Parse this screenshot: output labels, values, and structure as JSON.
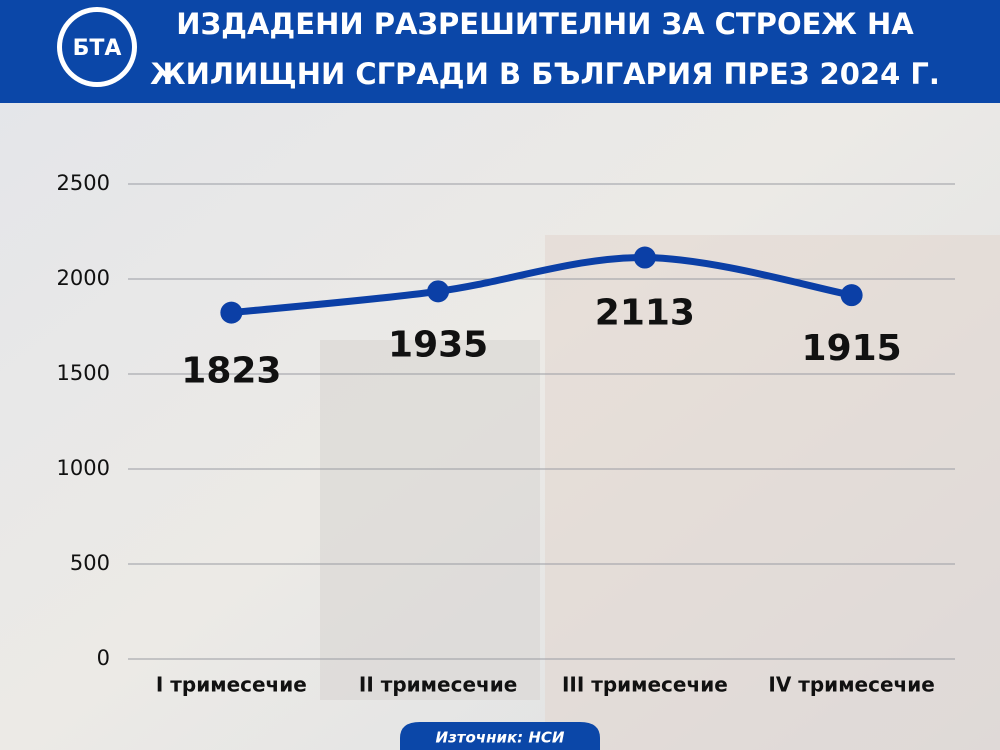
{
  "logo": "БТА",
  "chart_data": {
    "type": "line",
    "title": [
      "ИЗДАДЕНИ РАЗРЕШИТЕЛНИ ЗА СТРОЕЖ НА",
      "ЖИЛИЩНИ СГРАДИ В БЪЛГАРИЯ ПРЕЗ 2024 Г."
    ],
    "categories": [
      "I тримесечие",
      "II тримесечие",
      "III тримесечие",
      "IV тримесечие"
    ],
    "values": [
      1823,
      1935,
      2113,
      1915
    ],
    "color": "#0b3fa6",
    "ylim": [
      0,
      2500
    ],
    "yticks": [
      0,
      500,
      1000,
      1500,
      2000,
      2500
    ],
    "grid": true,
    "source": "Източник: НСИ"
  }
}
